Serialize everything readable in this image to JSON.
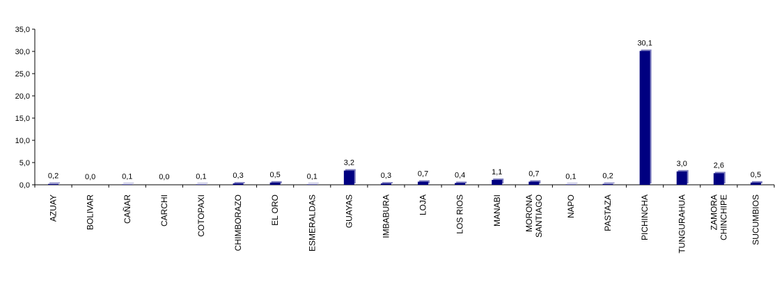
{
  "chart_data": {
    "type": "bar",
    "title": "",
    "xlabel": "",
    "ylabel": "",
    "ylim": [
      0,
      35
    ],
    "yticks": [
      "0,0",
      "5,0",
      "10,0",
      "15,0",
      "20,0",
      "25,0",
      "30,0",
      "35,0"
    ],
    "grid": false,
    "bar_color": "#000080",
    "categories": [
      [
        "AZUAY"
      ],
      [
        "BOLIVAR"
      ],
      [
        "CAÑAR"
      ],
      [
        "CARCHI"
      ],
      [
        "COTOPAXI"
      ],
      [
        "CHIMBORAZO"
      ],
      [
        "EL ORO"
      ],
      [
        "ESMERALDAS"
      ],
      [
        "GUAYAS"
      ],
      [
        "IMBABURA"
      ],
      [
        "LOJA"
      ],
      [
        "LOS RIOS"
      ],
      [
        "MANABI"
      ],
      [
        "MORONA",
        "SANTIAGO"
      ],
      [
        "NAPO"
      ],
      [
        "PASTAZA"
      ],
      [
        "PICHINCHA"
      ],
      [
        "TUNGURAHUA"
      ],
      [
        "ZAMORA",
        "CHINCHIPE"
      ],
      [
        "SUCUMBIOS"
      ]
    ],
    "values": [
      0.2,
      0.0,
      0.1,
      0.0,
      0.1,
      0.3,
      0.5,
      0.1,
      3.2,
      0.3,
      0.7,
      0.4,
      1.1,
      0.7,
      0.1,
      0.2,
      30.1,
      3.0,
      2.6,
      0.5
    ],
    "value_labels": [
      "0,2",
      "0,0",
      "0,1",
      "0,0",
      "0,1",
      "0,3",
      "0,5",
      "0,1",
      "3,2",
      "0,3",
      "0,7",
      "0,4",
      "1,1",
      "0,7",
      "0,1",
      "0,2",
      "30,1",
      "3,0",
      "2,6",
      "0,5"
    ]
  }
}
